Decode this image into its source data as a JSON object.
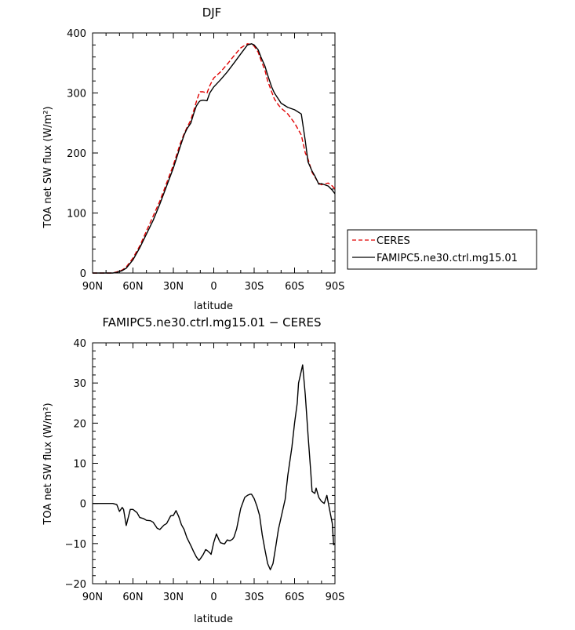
{
  "chart_data": [
    {
      "type": "line",
      "title": "DJF",
      "xlabel": "latitude",
      "ylabel": "TOA net SW flux (W/m²)",
      "xlim": [
        90,
        -90
      ],
      "ylim": [
        0,
        400
      ],
      "xticks": [
        90,
        60,
        30,
        0,
        -30,
        -60,
        -90
      ],
      "xtick_labels": [
        "90N",
        "60N",
        "30N",
        "0",
        "30S",
        "60S",
        "90S"
      ],
      "yticks": [
        0,
        100,
        200,
        300,
        400
      ],
      "ytick_labels": [
        "0",
        "100",
        "200",
        "300",
        "400"
      ],
      "legend_position": "right",
      "series": [
        {
          "name": "CERES",
          "color": "#e00000",
          "dash": "dashed",
          "x": [
            90,
            85,
            80,
            75,
            72,
            68,
            65,
            60,
            55,
            50,
            45,
            40,
            35,
            30,
            25,
            22,
            20,
            17,
            15,
            13,
            11,
            10,
            8,
            5,
            3,
            0,
            -5,
            -10,
            -15,
            -20,
            -25,
            -28,
            -30,
            -33,
            -35,
            -38,
            -40,
            -43,
            -45,
            -48,
            -50,
            -55,
            -60,
            -65,
            -68,
            -70,
            -73,
            -75,
            -78,
            -80,
            -85,
            -88,
            -90
          ],
          "y": [
            0,
            0,
            0,
            0,
            2,
            5,
            10,
            25,
            45,
            70,
            95,
            120,
            150,
            180,
            215,
            232,
            242,
            255,
            270,
            285,
            298,
            302,
            302,
            300,
            312,
            325,
            335,
            348,
            362,
            375,
            382,
            381,
            378,
            368,
            355,
            338,
            320,
            302,
            290,
            280,
            275,
            265,
            250,
            230,
            200,
            190,
            168,
            160,
            150,
            147,
            150,
            145,
            140
          ]
        },
        {
          "name": "FAMIPC5.ne30.ctrl.mg15.01",
          "color": "#000000",
          "dash": "solid",
          "x": [
            90,
            85,
            80,
            75,
            72,
            68,
            65,
            60,
            55,
            50,
            45,
            40,
            35,
            30,
            25,
            22,
            20,
            17,
            15,
            13,
            11,
            10,
            8,
            5,
            3,
            0,
            -5,
            -10,
            -15,
            -20,
            -25,
            -28,
            -30,
            -33,
            -35,
            -38,
            -40,
            -43,
            -45,
            -48,
            -50,
            -55,
            -60,
            -65,
            -68,
            -70,
            -73,
            -75,
            -78,
            -80,
            -85,
            -88,
            -90
          ],
          "y": [
            0,
            0,
            0,
            0,
            1,
            4,
            8,
            22,
            42,
            65,
            88,
            115,
            145,
            175,
            210,
            230,
            240,
            250,
            265,
            278,
            285,
            287,
            288,
            287,
            300,
            310,
            322,
            335,
            350,
            365,
            380,
            382,
            380,
            372,
            360,
            345,
            330,
            310,
            300,
            290,
            283,
            276,
            272,
            265,
            220,
            185,
            170,
            162,
            148,
            149,
            145,
            138,
            132
          ]
        }
      ]
    },
    {
      "type": "line",
      "title": "FAMIPC5.ne30.ctrl.mg15.01 − CERES",
      "xlabel": "latitude",
      "ylabel": "TOA net SW flux (W/m²)",
      "xlim": [
        90,
        -90
      ],
      "ylim": [
        -20,
        40
      ],
      "xticks": [
        90,
        60,
        30,
        0,
        -30,
        -60,
        -90
      ],
      "xtick_labels": [
        "90N",
        "60N",
        "30N",
        "0",
        "30S",
        "60S",
        "90S"
      ],
      "yticks": [
        -20,
        -10,
        0,
        10,
        20,
        30,
        40
      ],
      "ytick_labels": [
        "−20",
        "−10",
        "0",
        "10",
        "20",
        "30",
        "40"
      ],
      "series": [
        {
          "color": "#000000",
          "dash": "solid",
          "x": [
            90,
            85,
            80,
            75,
            72,
            70,
            68,
            67,
            65,
            62,
            60,
            57,
            55,
            52,
            50,
            47,
            45,
            42,
            40,
            37,
            35,
            32,
            30,
            28,
            26,
            24,
            22,
            20,
            17,
            15,
            13,
            11,
            10,
            8,
            6,
            5,
            3,
            2,
            0,
            -2,
            -4,
            -5,
            -8,
            -10,
            -12,
            -14,
            -15,
            -17,
            -20,
            -23,
            -25,
            -27,
            -28,
            -30,
            -32,
            -34,
            -36,
            -38,
            -40,
            -42,
            -44,
            -46,
            -48,
            -50,
            -53,
            -55,
            -58,
            -60,
            -62,
            -63,
            -65,
            -66,
            -68,
            -70,
            -72,
            -73,
            -75,
            -76,
            -78,
            -80,
            -82,
            -84,
            -86,
            -88,
            -89,
            -90
          ],
          "y": [
            0,
            0,
            0,
            0,
            -0.3,
            -2,
            -1,
            -1.5,
            -5.5,
            -1.5,
            -1.5,
            -2.3,
            -3.5,
            -3.8,
            -4.2,
            -4.3,
            -4.7,
            -6.2,
            -6.5,
            -5.4,
            -5.0,
            -3.1,
            -3.0,
            -1.8,
            -3.3,
            -5.3,
            -6.5,
            -8.5,
            -10.5,
            -12.0,
            -13.3,
            -14.2,
            -13.8,
            -12.8,
            -11.5,
            -11.7,
            -12.3,
            -12.7,
            -9.7,
            -7.6,
            -9.2,
            -9.8,
            -10.1,
            -9.1,
            -9.3,
            -8.9,
            -8.4,
            -6.3,
            -1.3,
            1.5,
            2.0,
            2.3,
            2.3,
            1.2,
            -0.6,
            -3.0,
            -7.8,
            -11.5,
            -15.0,
            -16.5,
            -15.0,
            -10.8,
            -6.5,
            -3.5,
            1.0,
            7.0,
            14.0,
            20.0,
            25.0,
            30.0,
            33.0,
            34.5,
            27.0,
            17.0,
            8.0,
            3.0,
            2.5,
            3.8,
            1.5,
            0.5,
            0.0,
            2.0,
            -1.5,
            -5.0,
            -10.3,
            -10.0
          ]
        }
      ]
    }
  ]
}
